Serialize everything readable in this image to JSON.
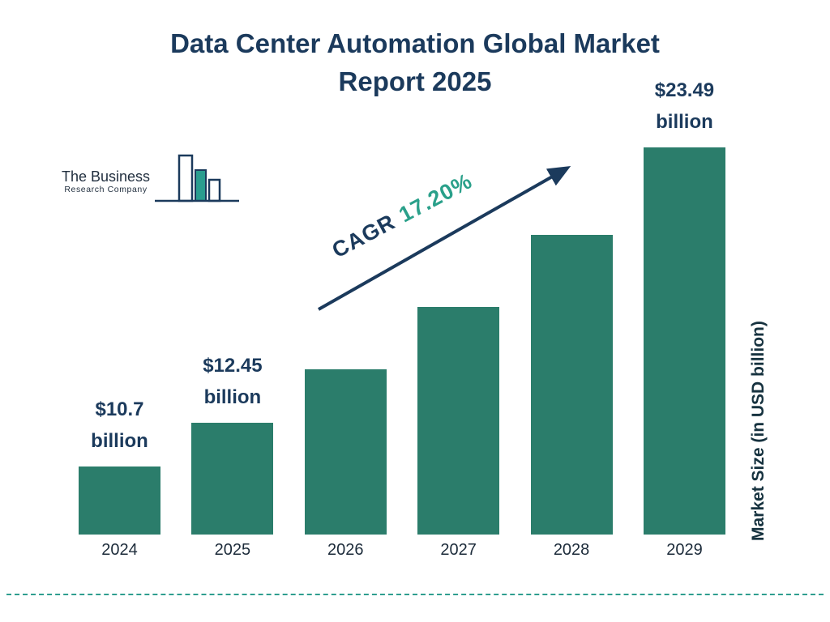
{
  "page": {
    "title_line1": "Data Center Automation Global Market",
    "title_line2": "Report 2025"
  },
  "logo": {
    "name_line1": "The Business",
    "name_line2": "Research Company"
  },
  "cagr": {
    "label": "CAGR",
    "value": "17.20%"
  },
  "chart_data": {
    "type": "bar",
    "title": "Data Center Automation Global Market Report 2025",
    "categories": [
      "2024",
      "2025",
      "2026",
      "2027",
      "2028",
      "2029"
    ],
    "values": [
      10.7,
      12.45,
      14.6,
      17.1,
      20.0,
      23.49
    ],
    "value_labels": [
      "$10.7 billion",
      "$12.45 billion",
      "",
      "",
      "",
      "$23.49 billion"
    ],
    "ylabel": "Market Size (in USD billion)",
    "xlabel": "",
    "ylim": [
      10,
      24
    ],
    "grid": false,
    "legend": false,
    "annotation": "CAGR 17.20%",
    "bar_color": "#2b7d6b"
  },
  "colors": {
    "navy": "#1b3a5c",
    "bar_teal": "#2b7d6b",
    "accent_teal": "#2aa08a",
    "divider_teal": "#2f9e8f"
  }
}
